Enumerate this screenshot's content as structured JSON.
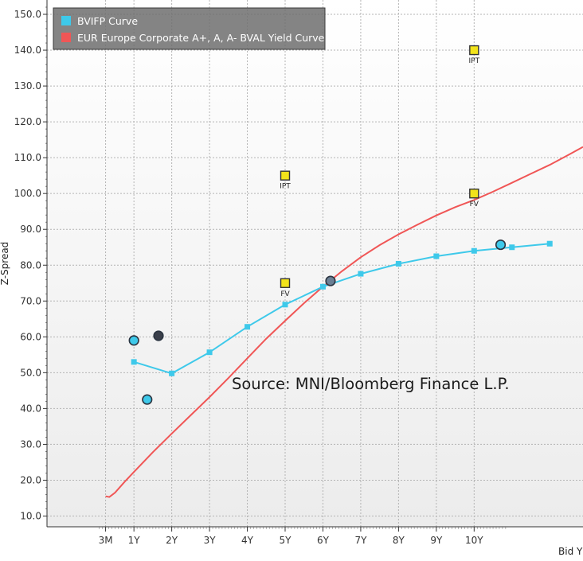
{
  "chart_data": {
    "type": "line",
    "ylabel": "Z-Spread",
    "xlabel": "Bid Y",
    "ylim": [
      7,
      154
    ],
    "yticks": [
      10,
      20,
      30,
      40,
      50,
      60,
      70,
      80,
      90,
      100,
      110,
      120,
      130,
      140,
      150
    ],
    "ytick_labels": [
      "10.0",
      "20.0",
      "30.0",
      "40.0",
      "50.0",
      "60.0",
      "70.0",
      "80.0",
      "90.0",
      "100.0",
      "110.0",
      "120.0",
      "130.0",
      "140.0",
      "150.0"
    ],
    "xlim": [
      -1.3,
      12.88
    ],
    "xticks": [
      {
        "label": "3M",
        "value": 0.25
      },
      {
        "label": "1Y",
        "value": 1
      },
      {
        "label": "2Y",
        "value": 2
      },
      {
        "label": "3Y",
        "value": 3
      },
      {
        "label": "4Y",
        "value": 4
      },
      {
        "label": "5Y",
        "value": 5
      },
      {
        "label": "6Y",
        "value": 6
      },
      {
        "label": "7Y",
        "value": 7
      },
      {
        "label": "8Y",
        "value": 8
      },
      {
        "label": "9Y",
        "value": 9
      },
      {
        "label": "10Y",
        "value": 10
      }
    ],
    "legend": {
      "position": "top-left",
      "entries": [
        {
          "label": "BVIFP Curve",
          "color": "#3ec9ea"
        },
        {
          "label": "EUR Europe Corporate A+, A, A- BVAL Yield Curve",
          "color": "#f05656"
        }
      ]
    },
    "series": [
      {
        "name": "BVIFP Curve",
        "color": "#3ec9ea",
        "x": [
          1,
          2,
          3,
          4,
          5,
          6,
          7,
          8,
          9,
          10,
          11,
          12
        ],
        "values": [
          53.0,
          49.8,
          55.7,
          62.8,
          69.0,
          74.0,
          77.6,
          80.4,
          82.5,
          84.0,
          85.0,
          86.0
        ]
      },
      {
        "name": "EUR Europe Corporate A+, A, A- BVAL Yield Curve",
        "color": "#f05656",
        "x": [
          0.25,
          0.35,
          0.5,
          0.75,
          1,
          1.5,
          2,
          2.5,
          3,
          3.5,
          4,
          4.5,
          5,
          5.5,
          6,
          6.5,
          7,
          7.5,
          8,
          8.5,
          9,
          9.5,
          10,
          10.5,
          11,
          11.5,
          12,
          12.5,
          12.88
        ],
        "values": [
          15.5,
          15.3,
          16.5,
          19.5,
          22.3,
          27.8,
          33.0,
          38.1,
          43.2,
          48.5,
          54.0,
          59.5,
          64.5,
          69.4,
          74.0,
          78.3,
          82.2,
          85.6,
          88.6,
          91.3,
          93.9,
          96.2,
          98.2,
          100.5,
          103.0,
          105.5,
          108.0,
          110.8,
          113.0
        ]
      }
    ],
    "bond_points_light": [
      {
        "x": 1.0,
        "y": 59.0
      },
      {
        "x": 1.35,
        "y": 42.5
      },
      {
        "x": 10.7,
        "y": 85.7
      }
    ],
    "bond_points_dark": [
      {
        "x": 1.65,
        "y": 60.3
      }
    ],
    "bond_points_mixed": [
      {
        "x": 6.2,
        "y": 75.6
      }
    ],
    "markers": [
      {
        "label": "IPT",
        "x": 10,
        "y": 140
      },
      {
        "label": "IPT",
        "x": 5,
        "y": 105
      },
      {
        "label": "FV",
        "x": 10,
        "y": 100
      },
      {
        "label": "FV",
        "x": 5,
        "y": 75
      }
    ],
    "annotation": "Source: MNI/Bloomberg Finance L.P."
  }
}
